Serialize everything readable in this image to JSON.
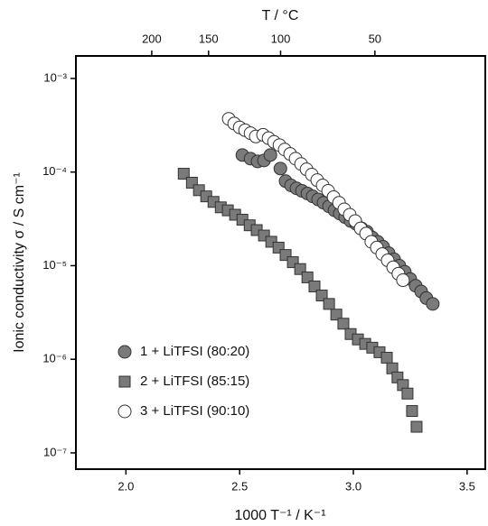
{
  "chart_data": {
    "type": "scatter",
    "xlabel": "1000 T⁻¹ / K⁻¹",
    "ylabel": "Ionic conductivity σ / S cm⁻¹",
    "x2label": "T / °C",
    "xlim": [
      1.78,
      3.58
    ],
    "xticks": [
      {
        "value": 2,
        "label": "2.0"
      },
      2.5,
      {
        "value": 3,
        "label": "3.0"
      },
      3.5
    ],
    "x2ticks": [
      200,
      150,
      100,
      50
    ],
    "ylim": [
      6.7e-08,
      0.00174
    ],
    "yscale": "log",
    "yticks": [
      {
        "value": 0.001,
        "label": "10⁻³"
      },
      {
        "value": 0.0001,
        "label": "10⁻⁴"
      },
      {
        "value": 1e-05,
        "label": "10⁻⁵"
      },
      {
        "value": 1e-06,
        "label": "10⁻⁶"
      },
      {
        "value": 1e-07,
        "label": "10⁻⁷"
      }
    ],
    "legend": "lower left",
    "series": [
      {
        "name": "1 + LiTFSI (80:20)",
        "marker": "circle",
        "color": "#7a7a7a",
        "x": [
          2.512,
          2.548,
          2.579,
          2.607,
          2.635,
          2.679,
          2.702,
          2.726,
          2.75,
          2.774,
          2.798,
          2.821,
          2.845,
          2.869,
          2.893,
          2.917,
          2.94,
          2.964,
          2.988,
          3.012,
          3.036,
          3.06,
          3.083,
          3.107,
          3.131,
          3.155,
          3.179,
          3.202,
          3.226,
          3.25,
          3.274,
          3.298,
          3.321,
          3.349
        ],
        "values": [
          0.000152,
          0.000139,
          0.00013,
          0.000133,
          0.000152,
          0.000109,
          8e-05,
          7.2e-05,
          6.7e-05,
          6.3e-05,
          5.9e-05,
          5.5e-05,
          5.1e-05,
          4.7e-05,
          4.3e-05,
          3.9e-05,
          3.6e-05,
          3.3e-05,
          3e-05,
          2.8e-05,
          2.5e-05,
          2.3e-05,
          2e-05,
          1.8e-05,
          1.59e-05,
          1.36e-05,
          1.17e-05,
          1e-05,
          8.6e-06,
          7.2e-06,
          6.1e-06,
          5.3e-06,
          4.5e-06,
          3.9e-06
        ]
      },
      {
        "name": "2 + LiTFSI (85:15)",
        "marker": "square",
        "color": "#7a7a7a",
        "x": [
          2.254,
          2.29,
          2.321,
          2.353,
          2.385,
          2.417,
          2.448,
          2.48,
          2.512,
          2.544,
          2.575,
          2.607,
          2.639,
          2.671,
          2.702,
          2.734,
          2.766,
          2.798,
          2.829,
          2.861,
          2.893,
          2.925,
          2.956,
          2.988,
          3.02,
          3.052,
          3.083,
          3.115,
          3.147,
          3.171,
          3.194,
          3.218,
          3.238,
          3.258,
          3.278
        ],
        "values": [
          9.6e-05,
          7.7e-05,
          6.4e-05,
          5.5e-05,
          4.8e-05,
          4.2e-05,
          3.9e-05,
          3.5e-05,
          3.1e-05,
          2.7e-05,
          2.4e-05,
          2.1e-05,
          1.8e-05,
          1.56e-05,
          1.3e-05,
          1.09e-05,
          9.2e-06,
          7.5e-06,
          6e-06,
          4.8e-06,
          3.9e-06,
          3e-06,
          2.4e-06,
          1.86e-06,
          1.63e-06,
          1.46e-06,
          1.33e-06,
          1.19e-06,
          1.04e-06,
          8e-07,
          6.4e-07,
          5.3e-07,
          4.3e-07,
          2.8e-07,
          1.9e-07
        ]
      },
      {
        "name": "3 + LiTFSI (90:10)",
        "marker": "circle",
        "color": "#ffffff",
        "x": [
          2.452,
          2.476,
          2.5,
          2.524,
          2.548,
          2.571,
          2.603,
          2.627,
          2.651,
          2.675,
          2.698,
          2.722,
          2.746,
          2.77,
          2.794,
          2.817,
          2.841,
          2.865,
          2.889,
          2.913,
          2.937,
          2.96,
          2.984,
          3.008,
          3.032,
          3.056,
          3.079,
          3.103,
          3.127,
          3.151,
          3.175,
          3.198,
          3.218
        ],
        "values": [
          0.00037,
          0.00033,
          0.0003,
          0.00028,
          0.00026,
          0.00024,
          0.00025,
          0.00023,
          0.00021,
          0.000194,
          0.000174,
          0.000156,
          0.000139,
          0.000122,
          0.000107,
          9.4e-05,
          8.2e-05,
          7.2e-05,
          6.3e-05,
          5.4e-05,
          4.7e-05,
          4e-05,
          3.5e-05,
          3e-05,
          2.5e-05,
          2.2e-05,
          1.8e-05,
          1.56e-05,
          1.33e-05,
          1.14e-05,
          9.6e-06,
          8.2e-06,
          7e-06
        ]
      }
    ]
  }
}
